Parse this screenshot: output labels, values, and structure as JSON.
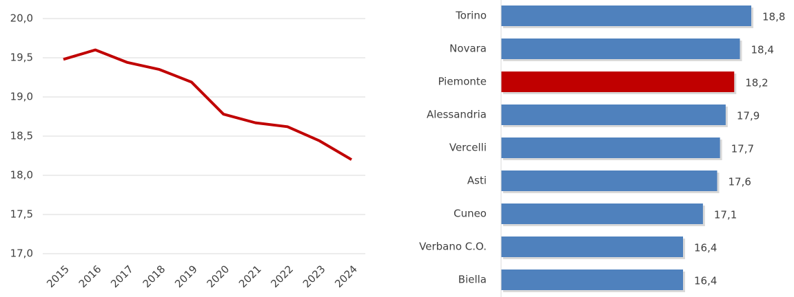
{
  "chart_data": [
    {
      "type": "line",
      "categories": [
        "2015",
        "2016",
        "2017",
        "2018",
        "2019",
        "2020",
        "2021",
        "2022",
        "2023",
        "2024"
      ],
      "values": [
        19.48,
        19.6,
        19.44,
        19.35,
        19.19,
        18.78,
        18.67,
        18.62,
        18.44,
        18.2
      ],
      "color": "#c00000",
      "ylim": [
        17,
        20
      ],
      "yticks": [
        {
          "value": 17,
          "label": "17,0"
        },
        {
          "value": 17.5,
          "label": "17,5"
        },
        {
          "value": 18,
          "label": "18,0"
        },
        {
          "value": 18.5,
          "label": "18,5"
        },
        {
          "value": 19,
          "label": "19,0"
        },
        {
          "value": 19.5,
          "label": "19,5"
        },
        {
          "value": 20,
          "label": "20,0"
        }
      ],
      "grid": true
    },
    {
      "type": "barh",
      "categories": [
        "Torino",
        "Novara",
        "Piemonte",
        "Alessandria",
        "Vercelli",
        "Asti",
        "Cuneo",
        "Verbano C.O.",
        "Biella"
      ],
      "values": [
        18.8,
        18.4,
        18.2,
        17.9,
        17.7,
        17.6,
        17.1,
        16.4,
        16.4
      ],
      "value_labels": [
        "18,8",
        "18,4",
        "18,2",
        "17,9",
        "17,7",
        "17,6",
        "17,1",
        "16,4",
        "16,4"
      ],
      "colors": [
        "#4f81bd",
        "#4f81bd",
        "#c00000",
        "#4f81bd",
        "#4f81bd",
        "#4f81bd",
        "#4f81bd",
        "#4f81bd",
        "#4f81bd"
      ],
      "xlim": [
        10,
        20
      ]
    }
  ]
}
